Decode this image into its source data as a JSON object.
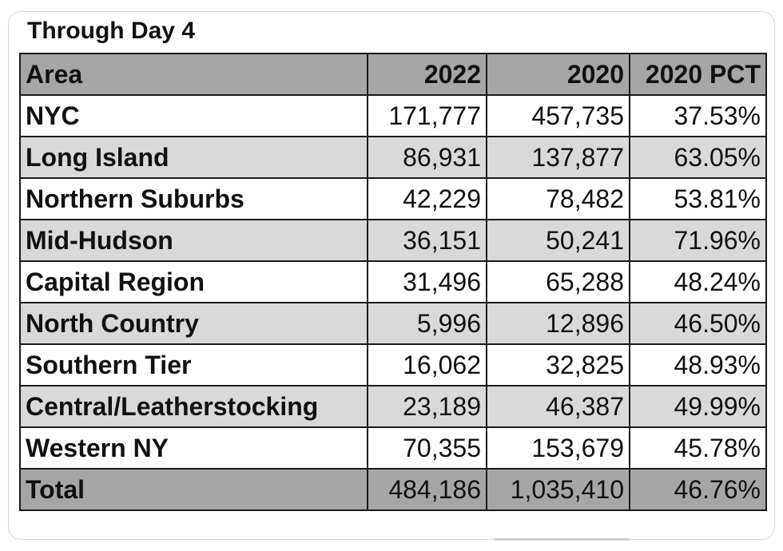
{
  "title": "Through Day 4",
  "chart_data": {
    "type": "table",
    "title": "Through Day 4",
    "columns": [
      "Area",
      "2022",
      "2020",
      "2020 PCT"
    ],
    "rows": [
      [
        "NYC",
        "171,777",
        "457,735",
        "37.53%"
      ],
      [
        "Long Island",
        "86,931",
        "137,877",
        "63.05%"
      ],
      [
        "Northern Suburbs",
        "42,229",
        "78,482",
        "53.81%"
      ],
      [
        "Mid-Hudson",
        "36,151",
        "50,241",
        "71.96%"
      ],
      [
        "Capital Region",
        "31,496",
        "65,288",
        "48.24%"
      ],
      [
        "North Country",
        "5,996",
        "12,896",
        "46.50%"
      ],
      [
        "Southern Tier",
        "16,062",
        "32,825",
        "48.93%"
      ],
      [
        "Central/Leatherstocking",
        "23,189",
        "46,387",
        "49.99%"
      ],
      [
        "Western NY",
        "70,355",
        "153,679",
        "45.78%"
      ]
    ],
    "total": [
      "Total",
      "484,186",
      "1,035,410",
      "46.76%"
    ]
  },
  "colors": {
    "header_bg": "#a6a6a6",
    "stripe_bg": "#d9d9d9",
    "border": "#1a1a1a"
  }
}
